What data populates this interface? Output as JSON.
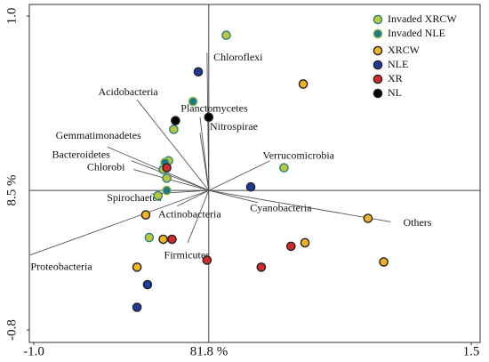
{
  "chart_data": {
    "type": "scatter",
    "x_label": "81.8 %",
    "y_label": "8.5 %",
    "xlim": [
      -1.0,
      1.5
    ],
    "ylim": [
      -0.8,
      1.0
    ],
    "xticks": [
      {
        "value": -1.0,
        "label": "-1.0"
      },
      1.5
    ],
    "yticks": [
      {
        "value": 1.0,
        "label": "1.0"
      },
      -0.8
    ],
    "series": [
      {
        "name": "Invaded XRCW",
        "color": "#bcc83a",
        "edge": "#2a7f8a",
        "x": [
          0.1,
          0.43,
          -0.2,
          -0.23,
          -0.26,
          -0.24,
          -0.29,
          -0.34
        ],
        "y": [
          0.89,
          0.13,
          0.35,
          0.17,
          0.12,
          0.07,
          -0.03,
          -0.27
        ]
      },
      {
        "name": "Invaded NLE",
        "color": "#1a7a8c",
        "edge": "#8fb23a",
        "x": [
          -0.09,
          -0.25,
          -0.24
        ],
        "y": [
          0.51,
          0.16,
          0.0
        ]
      },
      {
        "name": "XRCW",
        "color": "#f2b324",
        "edge": "#222222",
        "x": [
          0.54,
          0.91,
          1.0,
          0.55,
          -0.36,
          -0.26,
          -0.41
        ],
        "y": [
          0.61,
          -0.16,
          -0.41,
          -0.3,
          -0.14,
          -0.28,
          -0.44
        ]
      },
      {
        "name": "NLE",
        "color": "#1f3a9a",
        "edge": "#222222",
        "x": [
          -0.06,
          0.24,
          -0.35,
          -0.41
        ],
        "y": [
          0.68,
          0.02,
          -0.54,
          -0.67
        ]
      },
      {
        "name": "XR",
        "color": "#d42a2a",
        "edge": "#222222",
        "x": [
          -0.24,
          -0.21,
          -0.01,
          0.3,
          0.47
        ],
        "y": [
          0.13,
          -0.28,
          -0.4,
          -0.44,
          -0.32
        ]
      },
      {
        "name": "NL",
        "color": "#000000",
        "edge": "#222222",
        "x": [
          -0.19,
          0.0
        ],
        "y": [
          0.4,
          0.42
        ]
      }
    ],
    "arrows": {
      "labels": [
        "Chloroflexi",
        "Acidobacteria",
        "Planctomycetes",
        "Nitrospirae",
        "Gemmatimonadetes",
        "Bacteroidetes",
        "Chlorobi",
        "Verrucomicrobia",
        "Spirochaetes",
        "Cyanobacteria",
        "Others",
        "Actinobacteria",
        "Firmicutes",
        "Proteobacteria"
      ],
      "x": [
        -0.01,
        -0.41,
        -0.05,
        -0.05,
        -0.58,
        -0.44,
        -0.43,
        0.35,
        -0.33,
        0.28,
        1.04,
        -0.18,
        -0.12,
        -1.02
      ],
      "y": [
        0.79,
        0.52,
        0.42,
        0.33,
        0.25,
        0.17,
        0.12,
        0.17,
        -0.02,
        -0.07,
        -0.18,
        -0.09,
        -0.3,
        -0.37
      ]
    }
  }
}
